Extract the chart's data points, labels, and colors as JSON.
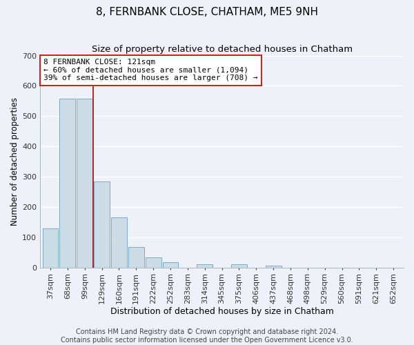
{
  "title": "8, FERNBANK CLOSE, CHATHAM, ME5 9NH",
  "subtitle": "Size of property relative to detached houses in Chatham",
  "xlabel": "Distribution of detached houses by size in Chatham",
  "ylabel": "Number of detached properties",
  "bar_labels": [
    "37sqm",
    "68sqm",
    "99sqm",
    "129sqm",
    "160sqm",
    "191sqm",
    "222sqm",
    "252sqm",
    "283sqm",
    "314sqm",
    "345sqm",
    "375sqm",
    "406sqm",
    "437sqm",
    "468sqm",
    "498sqm",
    "529sqm",
    "560sqm",
    "591sqm",
    "621sqm",
    "652sqm"
  ],
  "bar_values": [
    128,
    557,
    557,
    285,
    165,
    68,
    33,
    18,
    0,
    10,
    0,
    10,
    0,
    5,
    0,
    0,
    0,
    0,
    0,
    0,
    0
  ],
  "bar_color": "#ccdde8",
  "bar_edge_color": "#7aaac8",
  "vline_x_index": 2,
  "vline_color": "#bb0000",
  "annotation_text": "8 FERNBANK CLOSE: 121sqm\n← 60% of detached houses are smaller (1,094)\n39% of semi-detached houses are larger (708) →",
  "annotation_box_color": "#ffffff",
  "annotation_box_edge": "#cc2222",
  "ylim": [
    0,
    700
  ],
  "yticks": [
    0,
    100,
    200,
    300,
    400,
    500,
    600,
    700
  ],
  "footer_line1": "Contains HM Land Registry data © Crown copyright and database right 2024.",
  "footer_line2": "Contains public sector information licensed under the Open Government Licence v3.0.",
  "background_color": "#eef2f8",
  "grid_color": "#ffffff",
  "title_fontsize": 11,
  "subtitle_fontsize": 9.5,
  "xlabel_fontsize": 9,
  "ylabel_fontsize": 8.5,
  "tick_fontsize": 8,
  "footer_fontsize": 7
}
